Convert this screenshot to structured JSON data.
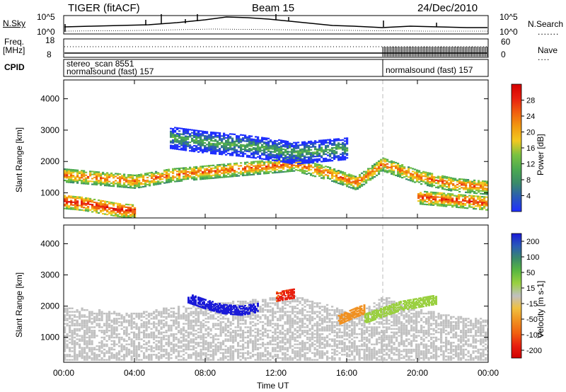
{
  "header": {
    "title": "TIGER (fitACF)",
    "beam": "Beam 15",
    "date": "24/Dec/2010"
  },
  "top_panels": {
    "nsky_label": "N.Sky",
    "nsky_top": "10^5",
    "nsky_bottom": "10^0",
    "nsearch_top": "10^5",
    "nsearch_bottom": "10^0",
    "nsearch_label": "N.Search",
    "freq_label_1": "Freq.",
    "freq_label_2": "[MHz]",
    "freq_top": "18",
    "freq_bottom": "8",
    "nave_top": "60",
    "nave_bottom": "0",
    "nave_label": "Nave",
    "cpid_label": "CPID",
    "cpid_text_1": "stereo_scan 8551",
    "cpid_text_2": "normalsound (fast) 157",
    "cpid_text_3": "normalsound (fast) 157"
  },
  "chart_data": [
    {
      "type": "heatmap",
      "title": "Power",
      "ylabel": "Slant Range [km]",
      "xlabel": "",
      "ylim": [
        200,
        4600
      ],
      "y_ticks": [
        "1000",
        "2000",
        "3000",
        "4000"
      ],
      "colorbar_label": "Power [dB]",
      "colorbar_ticks": [
        "4",
        "8",
        "12",
        "16",
        "20",
        "24",
        "28"
      ],
      "colorbar_colors": [
        "#1f2fff",
        "#2a5ab8",
        "#3a8a6a",
        "#4caa50",
        "#7ac240",
        "#f2c820",
        "#f29a10",
        "#f06010",
        "#e82010",
        "#d40000"
      ],
      "bands": [
        {
          "x": [
            0,
            2,
            4,
            6,
            8,
            10,
            12,
            13,
            15,
            16.5,
            18,
            19,
            20,
            22,
            24
          ],
          "y": [
            1550,
            1450,
            1350,
            1550,
            1650,
            1750,
            1850,
            1900,
            1600,
            1300,
            1900,
            1700,
            1500,
            1250,
            1150
          ],
          "level": 24
        },
        {
          "x": [
            0,
            1,
            2,
            3,
            4
          ],
          "y": [
            700,
            650,
            550,
            450,
            400
          ],
          "level": 28
        },
        {
          "x": [
            20,
            21,
            22,
            23,
            24
          ],
          "y": [
            850,
            800,
            750,
            700,
            650
          ],
          "level": 26
        },
        {
          "x": [
            6,
            8,
            10,
            12,
            13,
            14,
            16
          ],
          "y": [
            2750,
            2600,
            2500,
            2350,
            2250,
            2300,
            2400
          ],
          "level": 12
        }
      ]
    },
    {
      "type": "heatmap",
      "title": "Velocity",
      "ylabel": "Slant Range [km]",
      "xlabel": "Time UT",
      "ylim": [
        200,
        4600
      ],
      "y_ticks": [
        "1000",
        "2000",
        "3000",
        "4000"
      ],
      "x_ticks": [
        "00:00",
        "04:00",
        "08:00",
        "12:00",
        "16:00",
        "20:00",
        "00:00"
      ],
      "x_values": [
        0,
        4,
        8,
        12,
        16,
        20,
        24
      ],
      "colorbar_label": "Velocity [m s-1]",
      "colorbar_ticks": [
        "200",
        "100",
        "50",
        "15",
        "-15",
        "-50",
        "-100",
        "-200"
      ],
      "colorbar_colors": [
        "#1a1ad8",
        "#2a5ab8",
        "#3a8a6a",
        "#5ab840",
        "#9ad040",
        "#c0c0c0",
        "#f0c040",
        "#f09020",
        "#f06010",
        "#e82010",
        "#d00000"
      ],
      "features": [
        {
          "name": "blue arc",
          "x": [
            7,
            8,
            9,
            10,
            11
          ],
          "y": [
            2250,
            2050,
            1900,
            1850,
            1950
          ],
          "value": 200
        },
        {
          "name": "red patch",
          "x": [
            12,
            13
          ],
          "y": [
            2300,
            2400
          ],
          "value": -150
        },
        {
          "name": "orange patch",
          "x": [
            15.5,
            16.5,
            17
          ],
          "y": [
            1550,
            1800,
            1900
          ],
          "value": -80
        },
        {
          "name": "green scatter",
          "x": [
            17,
            18,
            19,
            20,
            21
          ],
          "y": [
            1600,
            1800,
            2000,
            2100,
            2200
          ],
          "value": 40
        }
      ]
    }
  ]
}
